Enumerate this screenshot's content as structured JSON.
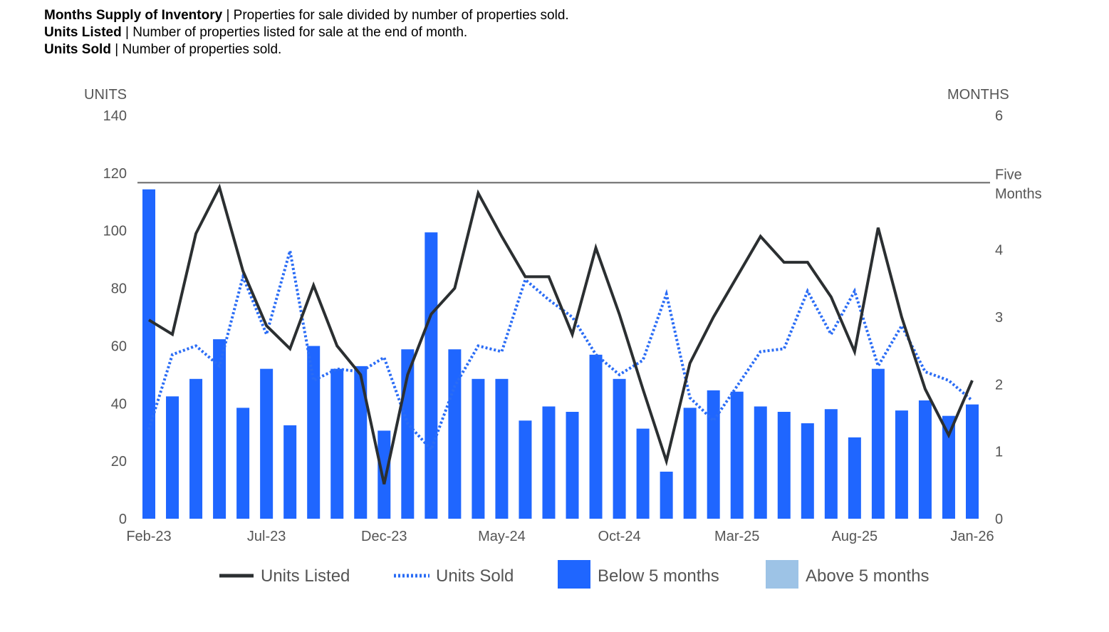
{
  "definitions": [
    {
      "term": "Months Supply of Inventory",
      "text": "Properties for sale divided by number of properties sold."
    },
    {
      "term": "Units Listed",
      "text": "Number of properties listed for sale at the end of month."
    },
    {
      "term": "Units Sold",
      "text": "Number of properties sold."
    }
  ],
  "chart_data": {
    "type": "bar+line",
    "left_axis": {
      "label": "UNITS",
      "range": [
        0,
        140
      ],
      "ticks": [
        "0",
        "20",
        "40",
        "60",
        "80",
        "100",
        "120",
        "140"
      ]
    },
    "right_axis": {
      "label": "MONTHS",
      "range": [
        0,
        6
      ],
      "ticks": [
        "0",
        "1",
        "2",
        "",
        "4",
        "",
        "6"
      ],
      "tick_values": [
        0,
        1,
        2,
        3,
        4,
        5,
        6
      ],
      "tick_labels": [
        "0",
        "1",
        "2",
        "3",
        "4",
        "",
        "6"
      ]
    },
    "reference_line": {
      "value": 5,
      "label_line1": "Five",
      "label_line2": "Months"
    },
    "categories": [
      "Feb-23",
      "Mar-23",
      "Apr-23",
      "May-23",
      "Jun-23",
      "Jul-23",
      "Aug-23",
      "Sep-23",
      "Oct-23",
      "Nov-23",
      "Dec-23",
      "Jan-24",
      "Feb-24",
      "Mar-24",
      "Apr-24",
      "May-24",
      "Jun-24",
      "Jul-24",
      "Aug-24",
      "Sep-24",
      "Oct-24",
      "Nov-24",
      "Dec-24",
      "Jan-25",
      "Feb-25",
      "Mar-25",
      "Apr-25",
      "May-25",
      "Jun-25",
      "Jul-25",
      "Aug-25",
      "Sep-25",
      "Oct-25",
      "Nov-25",
      "Dec-25",
      "Jan-26"
    ],
    "x_tick_labels": [
      "Feb-23",
      "Jul-23",
      "Dec-23",
      "May-24",
      "Oct-24",
      "Mar-25",
      "Aug-25",
      "Jan-26"
    ],
    "months_supply": [
      4.9,
      1.82,
      2.08,
      2.67,
      1.65,
      2.23,
      1.39,
      2.57,
      2.23,
      2.27,
      1.31,
      2.52,
      4.26,
      2.52,
      2.08,
      2.08,
      1.46,
      1.67,
      1.59,
      2.44,
      2.08,
      1.34,
      0.7,
      1.65,
      1.91,
      1.89,
      1.67,
      1.59,
      1.42,
      1.63,
      1.21,
      2.23,
      1.61,
      1.76,
      1.53,
      1.7
    ],
    "units_listed": [
      69,
      64,
      99,
      115,
      86,
      67,
      59,
      81,
      60,
      50,
      12,
      50,
      71,
      80,
      113,
      98,
      84,
      84,
      64,
      94,
      71,
      45,
      20,
      54,
      70,
      84,
      98,
      89,
      89,
      77,
      58,
      101,
      70,
      45,
      29,
      48
    ],
    "units_sold": [
      31,
      57,
      60,
      53,
      84,
      64,
      93,
      48,
      52,
      51,
      56,
      33,
      24,
      46,
      60,
      58,
      83,
      76,
      70,
      57,
      50,
      55,
      78,
      42,
      34,
      46,
      58,
      59,
      79,
      64,
      79,
      53,
      67,
      51,
      48,
      41
    ],
    "legend": [
      {
        "name": "Units Listed",
        "color": "#2b2f31",
        "style": "solid-line"
      },
      {
        "name": "Units Sold",
        "color": "#1f66ff",
        "style": "dotted-line"
      },
      {
        "name": "Below 5 months",
        "color": "#1f66ff",
        "style": "box"
      },
      {
        "name": "Above 5 months",
        "color": "#9dc3e6",
        "style": "box"
      }
    ],
    "legend_position": "bottom",
    "grid": false
  }
}
